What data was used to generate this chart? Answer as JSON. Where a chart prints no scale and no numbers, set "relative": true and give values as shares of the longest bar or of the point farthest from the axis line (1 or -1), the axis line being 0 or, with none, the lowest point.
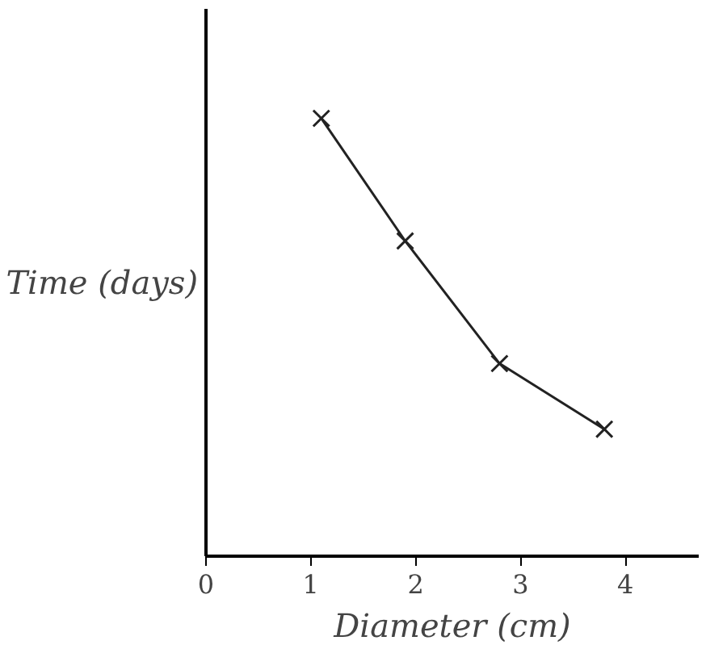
{
  "chart_data": {
    "type": "line",
    "xlabel": "Diameter (cm)",
    "ylabel": "Time (days)",
    "relative": true,
    "x": [
      1.1,
      1.9,
      2.8,
      3.8
    ],
    "values": [
      1,
      0.72,
      0.44,
      0.29
    ],
    "color": "#222222",
    "marker": "cross",
    "line_style": "solid",
    "grid": false,
    "tick_labels": "x",
    "xlim": [
      0,
      4.7
    ],
    "xticks": [
      0,
      1,
      2,
      3,
      4
    ]
  }
}
